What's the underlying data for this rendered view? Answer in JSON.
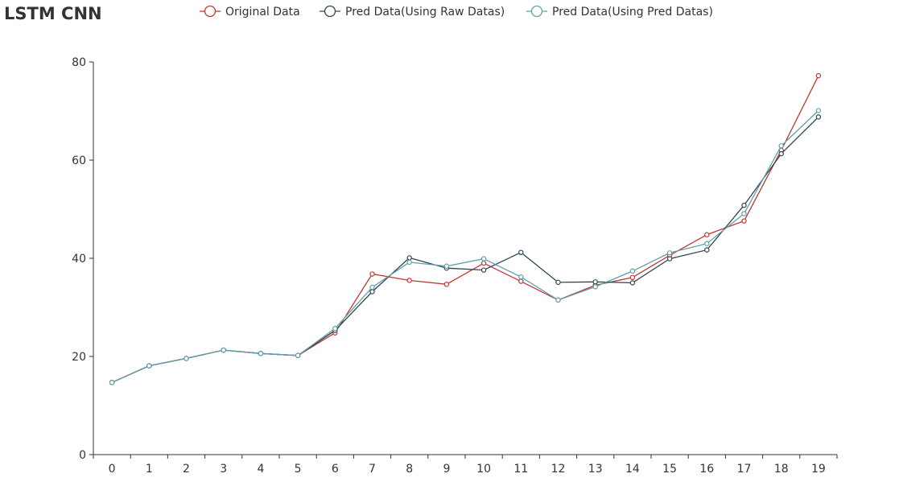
{
  "chart_data": {
    "type": "line",
    "title": "LSTM CNN",
    "xlabel": "",
    "ylabel": "",
    "categories": [
      "0",
      "1",
      "2",
      "3",
      "4",
      "5",
      "6",
      "7",
      "8",
      "9",
      "10",
      "11",
      "12",
      "13",
      "14",
      "15",
      "16",
      "17",
      "18",
      "19"
    ],
    "ylim": [
      0,
      80
    ],
    "yticks": [
      0,
      20,
      40,
      60,
      80
    ],
    "grid": false,
    "legend_position": "top-center",
    "series": [
      {
        "name": "Original Data",
        "color": "#c23531",
        "values": [
          14.7,
          18.1,
          19.6,
          21.3,
          20.6,
          20.2,
          24.8,
          36.8,
          35.5,
          34.7,
          39.0,
          35.3,
          31.5,
          34.5,
          36.1,
          40.6,
          44.8,
          47.6,
          62.0,
          77.2
        ]
      },
      {
        "name": "Pred Data(Using Raw Datas)",
        "color": "#2f4554",
        "values": [
          14.7,
          18.1,
          19.6,
          21.3,
          20.6,
          20.2,
          25.3,
          33.2,
          40.1,
          38.0,
          37.6,
          41.2,
          35.1,
          35.2,
          35.0,
          39.9,
          41.7,
          50.8,
          61.3,
          68.8
        ]
      },
      {
        "name": "Pred Data(Using Pred Datas)",
        "color": "#61a0a8",
        "values": [
          14.7,
          18.1,
          19.6,
          21.3,
          20.6,
          20.2,
          25.7,
          34.1,
          39.2,
          38.4,
          39.9,
          36.2,
          31.5,
          34.2,
          37.4,
          41.1,
          43.0,
          49.1,
          62.9,
          70.1
        ]
      }
    ]
  }
}
